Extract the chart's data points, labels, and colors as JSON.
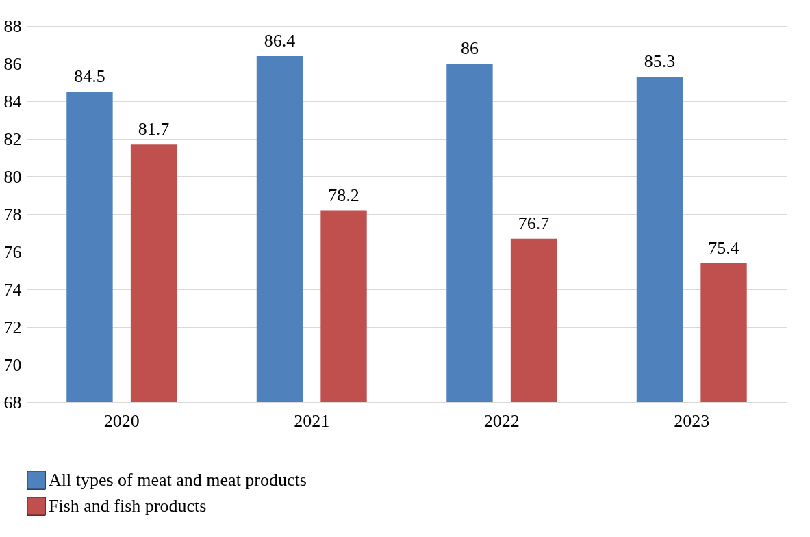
{
  "chart_data": {
    "type": "bar",
    "categories": [
      "2020",
      "2021",
      "2022",
      "2023"
    ],
    "series": [
      {
        "name": "All types of meat and meat products",
        "color": "#4f81bd",
        "values": [
          84.5,
          86.4,
          86,
          85.3
        ]
      },
      {
        "name": "Fish and fish products",
        "color": "#c0504d",
        "values": [
          81.7,
          78.2,
          76.7,
          75.4
        ]
      }
    ],
    "ylim": [
      68,
      88
    ],
    "yticks": [
      68,
      70,
      72,
      74,
      76,
      78,
      80,
      82,
      84,
      86,
      88
    ],
    "grid": "y",
    "legend": "bottom",
    "data_labels": true
  }
}
